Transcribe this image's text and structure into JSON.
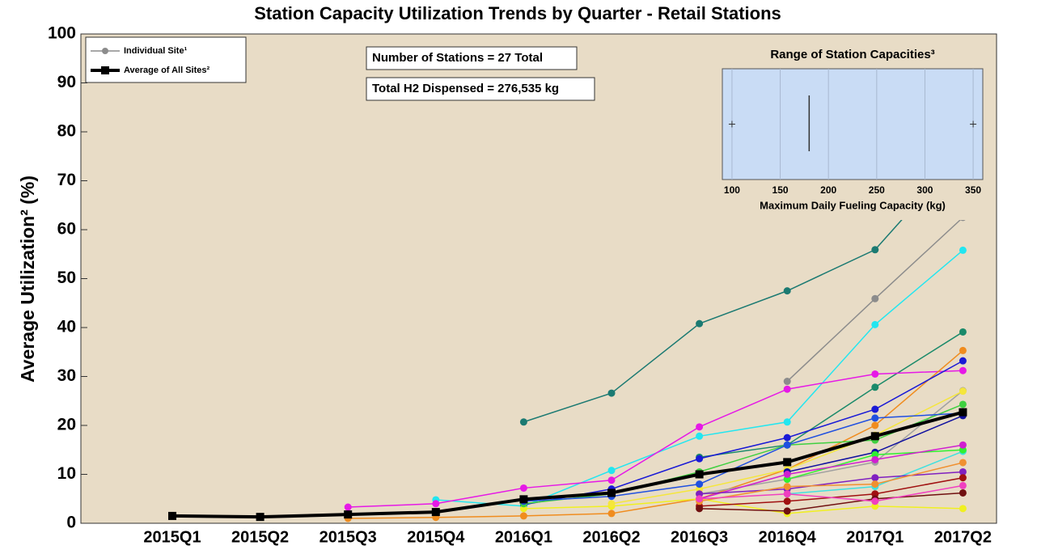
{
  "chart_data": [
    {
      "type": "line",
      "title": "Station Capacity Utilization Trends by Quarter - Retail Stations",
      "y_label": "Average Utilization² (%)",
      "categories": [
        "2015Q1",
        "2015Q2",
        "2015Q3",
        "2015Q4",
        "2016Q1",
        "2016Q2",
        "2016Q3",
        "2016Q4",
        "2017Q1",
        "2017Q2"
      ],
      "ylim": [
        0,
        100
      ],
      "yticks": [
        0,
        10,
        20,
        30,
        40,
        50,
        60,
        70,
        80,
        90,
        100
      ],
      "legend": [
        "Individual Site¹",
        "Average of All Sites²"
      ],
      "annotations": [
        "Number of Stations = 27 Total",
        "Total H2 Dispensed = 276,535 kg"
      ],
      "series": [
        {
          "color": "#1b7a72",
          "values": [
            null,
            null,
            null,
            null,
            20.7,
            26.6,
            40.8,
            47.5,
            55.9,
            76
          ]
        },
        {
          "color": "#8c8c8c",
          "values": [
            null,
            null,
            null,
            null,
            null,
            null,
            null,
            29,
            45.9,
            62.5
          ]
        },
        {
          "color": "#22e6f0",
          "values": [
            null,
            null,
            null,
            4.8,
            3.5,
            10.8,
            17.8,
            20.7,
            40.6,
            55.8
          ]
        },
        {
          "color": "#1a8a6a",
          "values": [
            null,
            null,
            null,
            null,
            null,
            null,
            13.5,
            16,
            27.8,
            39.1
          ]
        },
        {
          "color": "#e619e6",
          "values": [
            null,
            null,
            3.3,
            4,
            7.2,
            8.8,
            19.7,
            27.4,
            30.5,
            31.2
          ]
        },
        {
          "color": "#f08c1e",
          "values": [
            null,
            null,
            1,
            1.2,
            1.5,
            2,
            5,
            11,
            20,
            35.3
          ]
        },
        {
          "color": "#1a1ad6",
          "values": [
            null,
            null,
            null,
            null,
            3.8,
            7,
            13.2,
            17.5,
            23.3,
            33.2
          ]
        },
        {
          "color": "#a0a0a0",
          "values": [
            null,
            null,
            null,
            null,
            null,
            null,
            6,
            9,
            12.5,
            27.1
          ]
        },
        {
          "color": "#f0f020",
          "values": [
            null,
            null,
            null,
            null,
            3,
            3.5,
            5,
            2,
            3.5,
            3
          ]
        },
        {
          "color": "#f5e63c",
          "values": [
            null,
            null,
            null,
            null,
            null,
            4,
            7,
            11,
            18,
            27
          ]
        },
        {
          "color": "#40d040",
          "values": [
            null,
            null,
            null,
            null,
            4,
            6,
            10.5,
            16,
            17,
            24.3
          ]
        },
        {
          "color": "#2050e0",
          "values": [
            null,
            null,
            null,
            null,
            4.5,
            5.5,
            8,
            16,
            21.5,
            22.5
          ]
        },
        {
          "color": "#1010a0",
          "values": [
            null,
            null,
            null,
            null,
            null,
            null,
            null,
            10.5,
            14.5,
            22
          ]
        },
        {
          "color": "#40e0e0",
          "values": [
            null,
            null,
            null,
            null,
            null,
            null,
            null,
            6,
            7.5,
            14.7
          ]
        },
        {
          "color": "#30f030",
          "values": [
            null,
            null,
            null,
            null,
            null,
            null,
            null,
            9,
            14,
            15
          ]
        },
        {
          "color": "#d020d0",
          "values": [
            null,
            null,
            null,
            null,
            null,
            null,
            5,
            10,
            13,
            16
          ]
        },
        {
          "color": "#8020c0",
          "values": [
            null,
            null,
            null,
            null,
            null,
            null,
            6,
            7,
            9.3,
            10.5
          ]
        },
        {
          "color": "#a01010",
          "values": [
            null,
            null,
            null,
            null,
            null,
            null,
            3.5,
            4.5,
            6,
            9.3
          ]
        },
        {
          "color": "#701010",
          "values": [
            null,
            null,
            null,
            null,
            null,
            null,
            3,
            2.5,
            5,
            6.2
          ]
        },
        {
          "color": "#f09030",
          "values": [
            null,
            null,
            null,
            null,
            null,
            null,
            4.5,
            7.5,
            8,
            12.4
          ]
        },
        {
          "color": "#f040c0",
          "values": [
            null,
            null,
            null,
            null,
            null,
            null,
            5,
            6,
            4.5,
            7.7
          ]
        }
      ],
      "average": {
        "color": "#000000",
        "values": [
          1.5,
          1.3,
          1.8,
          2.3,
          4.9,
          6.2,
          10,
          12.5,
          17.8,
          22.7
        ]
      }
    },
    {
      "type": "box",
      "title": "Range of Station Capacities³",
      "x_label": "Maximum Daily Fueling Capacity (kg)",
      "xlim": [
        90,
        360
      ],
      "xticks": [
        100,
        150,
        200,
        250,
        300,
        350
      ],
      "median": 180,
      "outliers": [
        100,
        350
      ]
    }
  ]
}
